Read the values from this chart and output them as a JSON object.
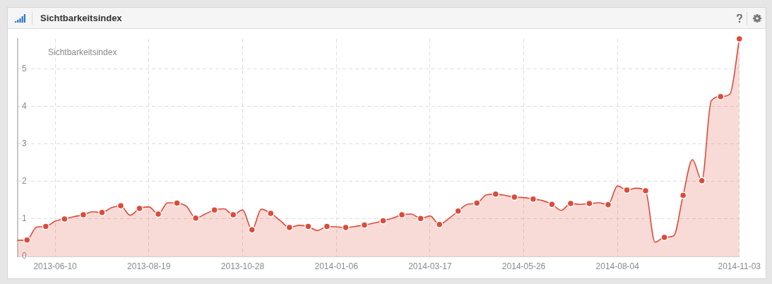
{
  "chart_data": {
    "type": "area",
    "title": "Sichtbarkeitsindex",
    "annotations": [
      "Sichtbarkeitsindex"
    ],
    "series": [
      {
        "color": "#dd4b39",
        "marker": "none",
        "x": [
          "2013-05-13",
          "2013-05-20",
          "2013-05-27",
          "2013-06-03",
          "2013-06-10",
          "2013-06-17",
          "2013-06-24",
          "2013-07-01",
          "2013-07-08",
          "2013-07-15",
          "2013-07-22",
          "2013-07-29",
          "2013-08-05",
          "2013-08-12",
          "2013-08-19",
          "2013-08-26",
          "2013-09-02",
          "2013-09-09",
          "2013-09-16",
          "2013-09-23",
          "2013-09-30",
          "2013-10-07",
          "2013-10-14",
          "2013-10-21",
          "2013-10-28",
          "2013-11-04",
          "2013-11-11",
          "2013-11-18",
          "2013-11-25",
          "2013-12-02",
          "2013-12-09",
          "2013-12-16",
          "2013-12-23",
          "2013-12-30",
          "2014-01-06",
          "2014-01-13",
          "2014-01-20",
          "2014-01-27",
          "2014-02-03",
          "2014-02-10",
          "2014-02-17",
          "2014-02-24",
          "2014-03-03",
          "2014-03-10",
          "2014-03-17",
          "2014-03-24",
          "2014-03-31",
          "2014-04-07",
          "2014-04-14",
          "2014-04-21",
          "2014-04-28",
          "2014-05-05",
          "2014-05-12",
          "2014-05-19",
          "2014-05-26",
          "2014-06-02",
          "2014-06-09",
          "2014-06-16",
          "2014-06-23",
          "2014-06-30",
          "2014-07-07",
          "2014-07-14",
          "2014-07-21",
          "2014-07-28",
          "2014-08-04",
          "2014-08-11",
          "2014-08-18",
          "2014-08-25",
          "2014-09-01",
          "2014-09-08",
          "2014-09-15",
          "2014-09-22",
          "2014-09-29",
          "2014-10-06",
          "2014-10-13",
          "2014-10-20",
          "2014-10-27",
          "2014-11-03"
        ],
        "values": [
          0.43,
          0.44,
          0.78,
          0.8,
          0.94,
          1.0,
          1.06,
          1.11,
          1.19,
          1.17,
          1.3,
          1.35,
          1.1,
          1.28,
          1.32,
          1.13,
          1.43,
          1.42,
          1.34,
          1.02,
          1.13,
          1.24,
          1.27,
          1.11,
          1.24,
          0.71,
          1.26,
          1.15,
          0.96,
          0.77,
          0.83,
          0.8,
          0.69,
          0.8,
          0.79,
          0.77,
          0.8,
          0.84,
          0.89,
          0.95,
          1.02,
          1.11,
          1.13,
          1.01,
          1.08,
          0.85,
          1.01,
          1.21,
          1.39,
          1.42,
          1.64,
          1.66,
          1.63,
          1.58,
          1.57,
          1.53,
          1.49,
          1.39,
          1.23,
          1.41,
          1.39,
          1.41,
          1.43,
          1.38,
          1.88,
          1.77,
          1.82,
          1.75,
          0.38,
          0.51,
          0.55,
          1.63,
          2.58,
          2.02,
          4.15,
          4.26,
          4.33,
          5.8
        ]
      },
      {
        "type": "scatter",
        "color": "#dd4b39",
        "marker": "circle",
        "x": [
          "2013-05-20",
          "2013-06-03",
          "2013-06-17",
          "2013-07-01",
          "2013-07-15",
          "2013-07-29",
          "2013-08-12",
          "2013-08-26",
          "2013-09-09",
          "2013-09-23",
          "2013-10-07",
          "2013-10-21",
          "2013-11-04",
          "2013-11-18",
          "2013-12-02",
          "2013-12-16",
          "2013-12-30",
          "2014-01-13",
          "2014-01-27",
          "2014-02-10",
          "2014-02-24",
          "2014-03-10",
          "2014-03-24",
          "2014-04-07",
          "2014-04-21",
          "2014-05-05",
          "2014-05-19",
          "2014-06-02",
          "2014-06-16",
          "2014-06-30",
          "2014-07-14",
          "2014-07-28",
          "2014-08-11",
          "2014-08-25",
          "2014-09-08",
          "2014-09-22",
          "2014-10-06",
          "2014-10-20",
          "2014-11-03"
        ],
        "values": [
          0.44,
          0.8,
          1.0,
          1.11,
          1.17,
          1.35,
          1.28,
          1.13,
          1.42,
          1.02,
          1.24,
          1.11,
          0.71,
          1.15,
          0.77,
          0.8,
          0.8,
          0.77,
          0.84,
          0.95,
          1.11,
          1.01,
          0.85,
          1.21,
          1.42,
          1.66,
          1.58,
          1.53,
          1.39,
          1.41,
          1.41,
          1.38,
          1.77,
          1.75,
          0.51,
          1.63,
          2.02,
          4.26,
          5.8
        ]
      }
    ],
    "xlim": [
      "2013-05-13",
      "2014-11-03"
    ],
    "xticks": [
      "2013-06-10",
      "2013-08-19",
      "2013-10-28",
      "2014-01-06",
      "2014-03-17",
      "2014-05-26",
      "2014-08-04",
      "2014-11-03"
    ],
    "ylim": [
      0,
      5.8
    ],
    "yticks": [
      0,
      1,
      2,
      3,
      4,
      5
    ],
    "grid": true,
    "legend": false
  }
}
